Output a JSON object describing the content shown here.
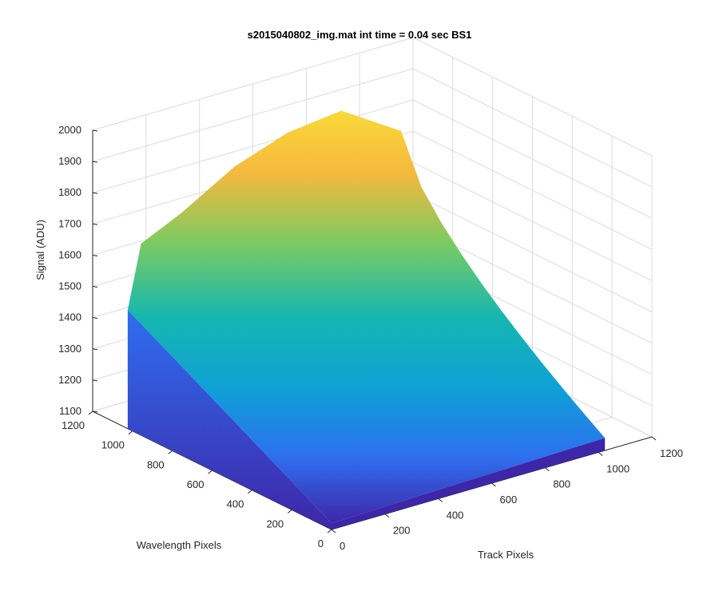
{
  "chart_data": {
    "type": "surface",
    "title": "s2015040802_img.mat int time = 0.04 sec   BS1",
    "xlabel": "Track Pixels",
    "ylabel": "Wavelength Pixels",
    "zlabel": "Signal (ADU)",
    "xlim": [
      0,
      1200
    ],
    "ylim": [
      0,
      1200
    ],
    "zlim": [
      1100,
      2000
    ],
    "x_ticks": [
      "0",
      "200",
      "400",
      "600",
      "800",
      "1000",
      "1200"
    ],
    "y_ticks": [
      "0",
      "200",
      "400",
      "600",
      "800",
      "1000",
      "1200"
    ],
    "z_ticks": [
      "1100",
      "1200",
      "1300",
      "1400",
      "1500",
      "1600",
      "1700",
      "1800",
      "1900",
      "2000"
    ],
    "grid": true,
    "colormap": [
      "#3e26a8",
      "#2e6ff0",
      "#0f9fd6",
      "#15b7b0",
      "#7bcb62",
      "#f6b93d",
      "#f9d93a"
    ],
    "surface": {
      "x_extent": [
        0,
        1024
      ],
      "y_extent": [
        0,
        1024
      ],
      "corner_values": {
        "x0_y0": 1120,
        "x0_y1024": 1480,
        "x1024_y1024": 1800,
        "x1024_y0": 1140
      },
      "peak_signal_along_y1024": [
        {
          "x": 0,
          "z": 1480
        },
        {
          "x": 50,
          "z": 1680
        },
        {
          "x": 200,
          "z": 1740
        },
        {
          "x": 400,
          "z": 1840
        },
        {
          "x": 600,
          "z": 1900
        },
        {
          "x": 800,
          "z": 1920
        },
        {
          "x": 1024,
          "z": 1800
        }
      ]
    }
  }
}
